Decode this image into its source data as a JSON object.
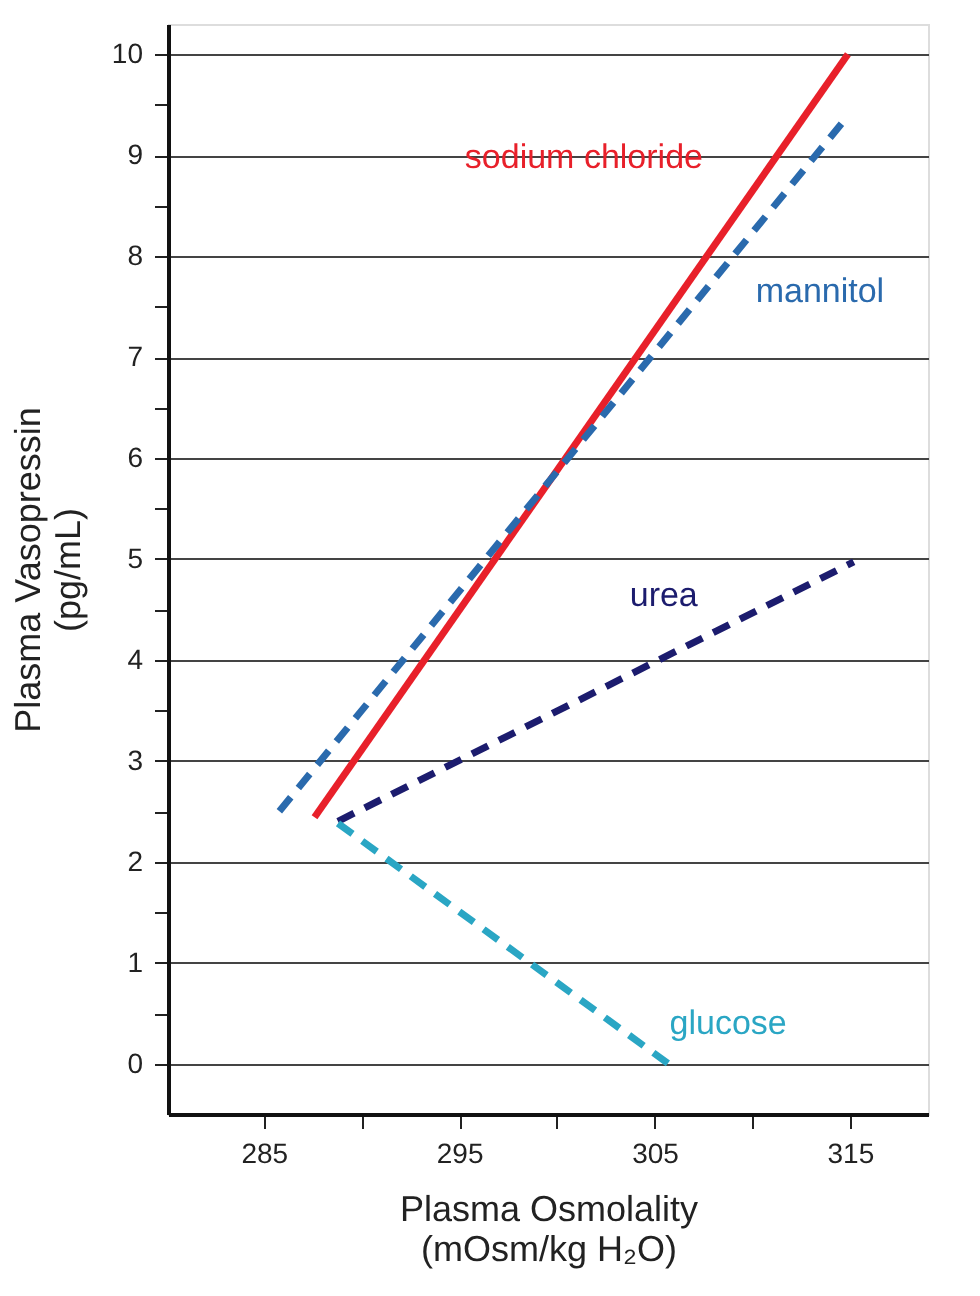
{
  "chart_data": {
    "type": "line",
    "xlabel": "Plasma Osmolality\n(mOsm/kg H₂O)",
    "ylabel": "Plasma Vasopressin\n(pg/mL)",
    "series": [
      {
        "name": "sodium chloride",
        "color": "#e8202a",
        "x": [
          287.6,
          314.9
        ],
        "values": [
          2.44,
          10.0
        ],
        "line_style": "solid"
      },
      {
        "name": "mannitol",
        "color": "#2a6aad",
        "x": [
          285.8,
          314.9
        ],
        "values": [
          2.5,
          9.39
        ],
        "line_style": "dashed"
      },
      {
        "name": "urea",
        "color": "#1c1c6e",
        "x": [
          288.8,
          315.2
        ],
        "values": [
          2.4,
          4.97
        ],
        "line_style": "dashed"
      },
      {
        "name": "glucose",
        "color": "#2aa6c4",
        "x": [
          288.8,
          305.7
        ],
        "values": [
          2.38,
          0.0
        ],
        "line_style": "dashed"
      }
    ],
    "xlim": [
      280.1,
      319
    ],
    "ylim": [
      -0.5,
      10.3
    ],
    "xticks": [
      285,
      {
        "value": 290,
        "label": null
      },
      295,
      {
        "value": 300,
        "label": null
      },
      305,
      {
        "value": 310,
        "label": null
      },
      315
    ],
    "yticks": [
      0,
      {
        "value": 0.5,
        "label": null
      },
      1,
      {
        "value": 1.5,
        "label": null
      },
      2,
      {
        "value": 2.5,
        "label": null
      },
      3,
      {
        "value": 3.5,
        "label": null
      },
      4,
      {
        "value": 4.5,
        "label": null
      },
      5,
      {
        "value": 5.5,
        "label": null
      },
      6,
      {
        "value": 6.5,
        "label": null
      },
      7,
      {
        "value": 7.5,
        "label": null
      },
      8,
      {
        "value": 8.5,
        "label": null
      },
      9,
      {
        "value": 9.5,
        "label": null
      },
      10
    ],
    "grid": "y",
    "legend": false,
    "marker": "none"
  }
}
